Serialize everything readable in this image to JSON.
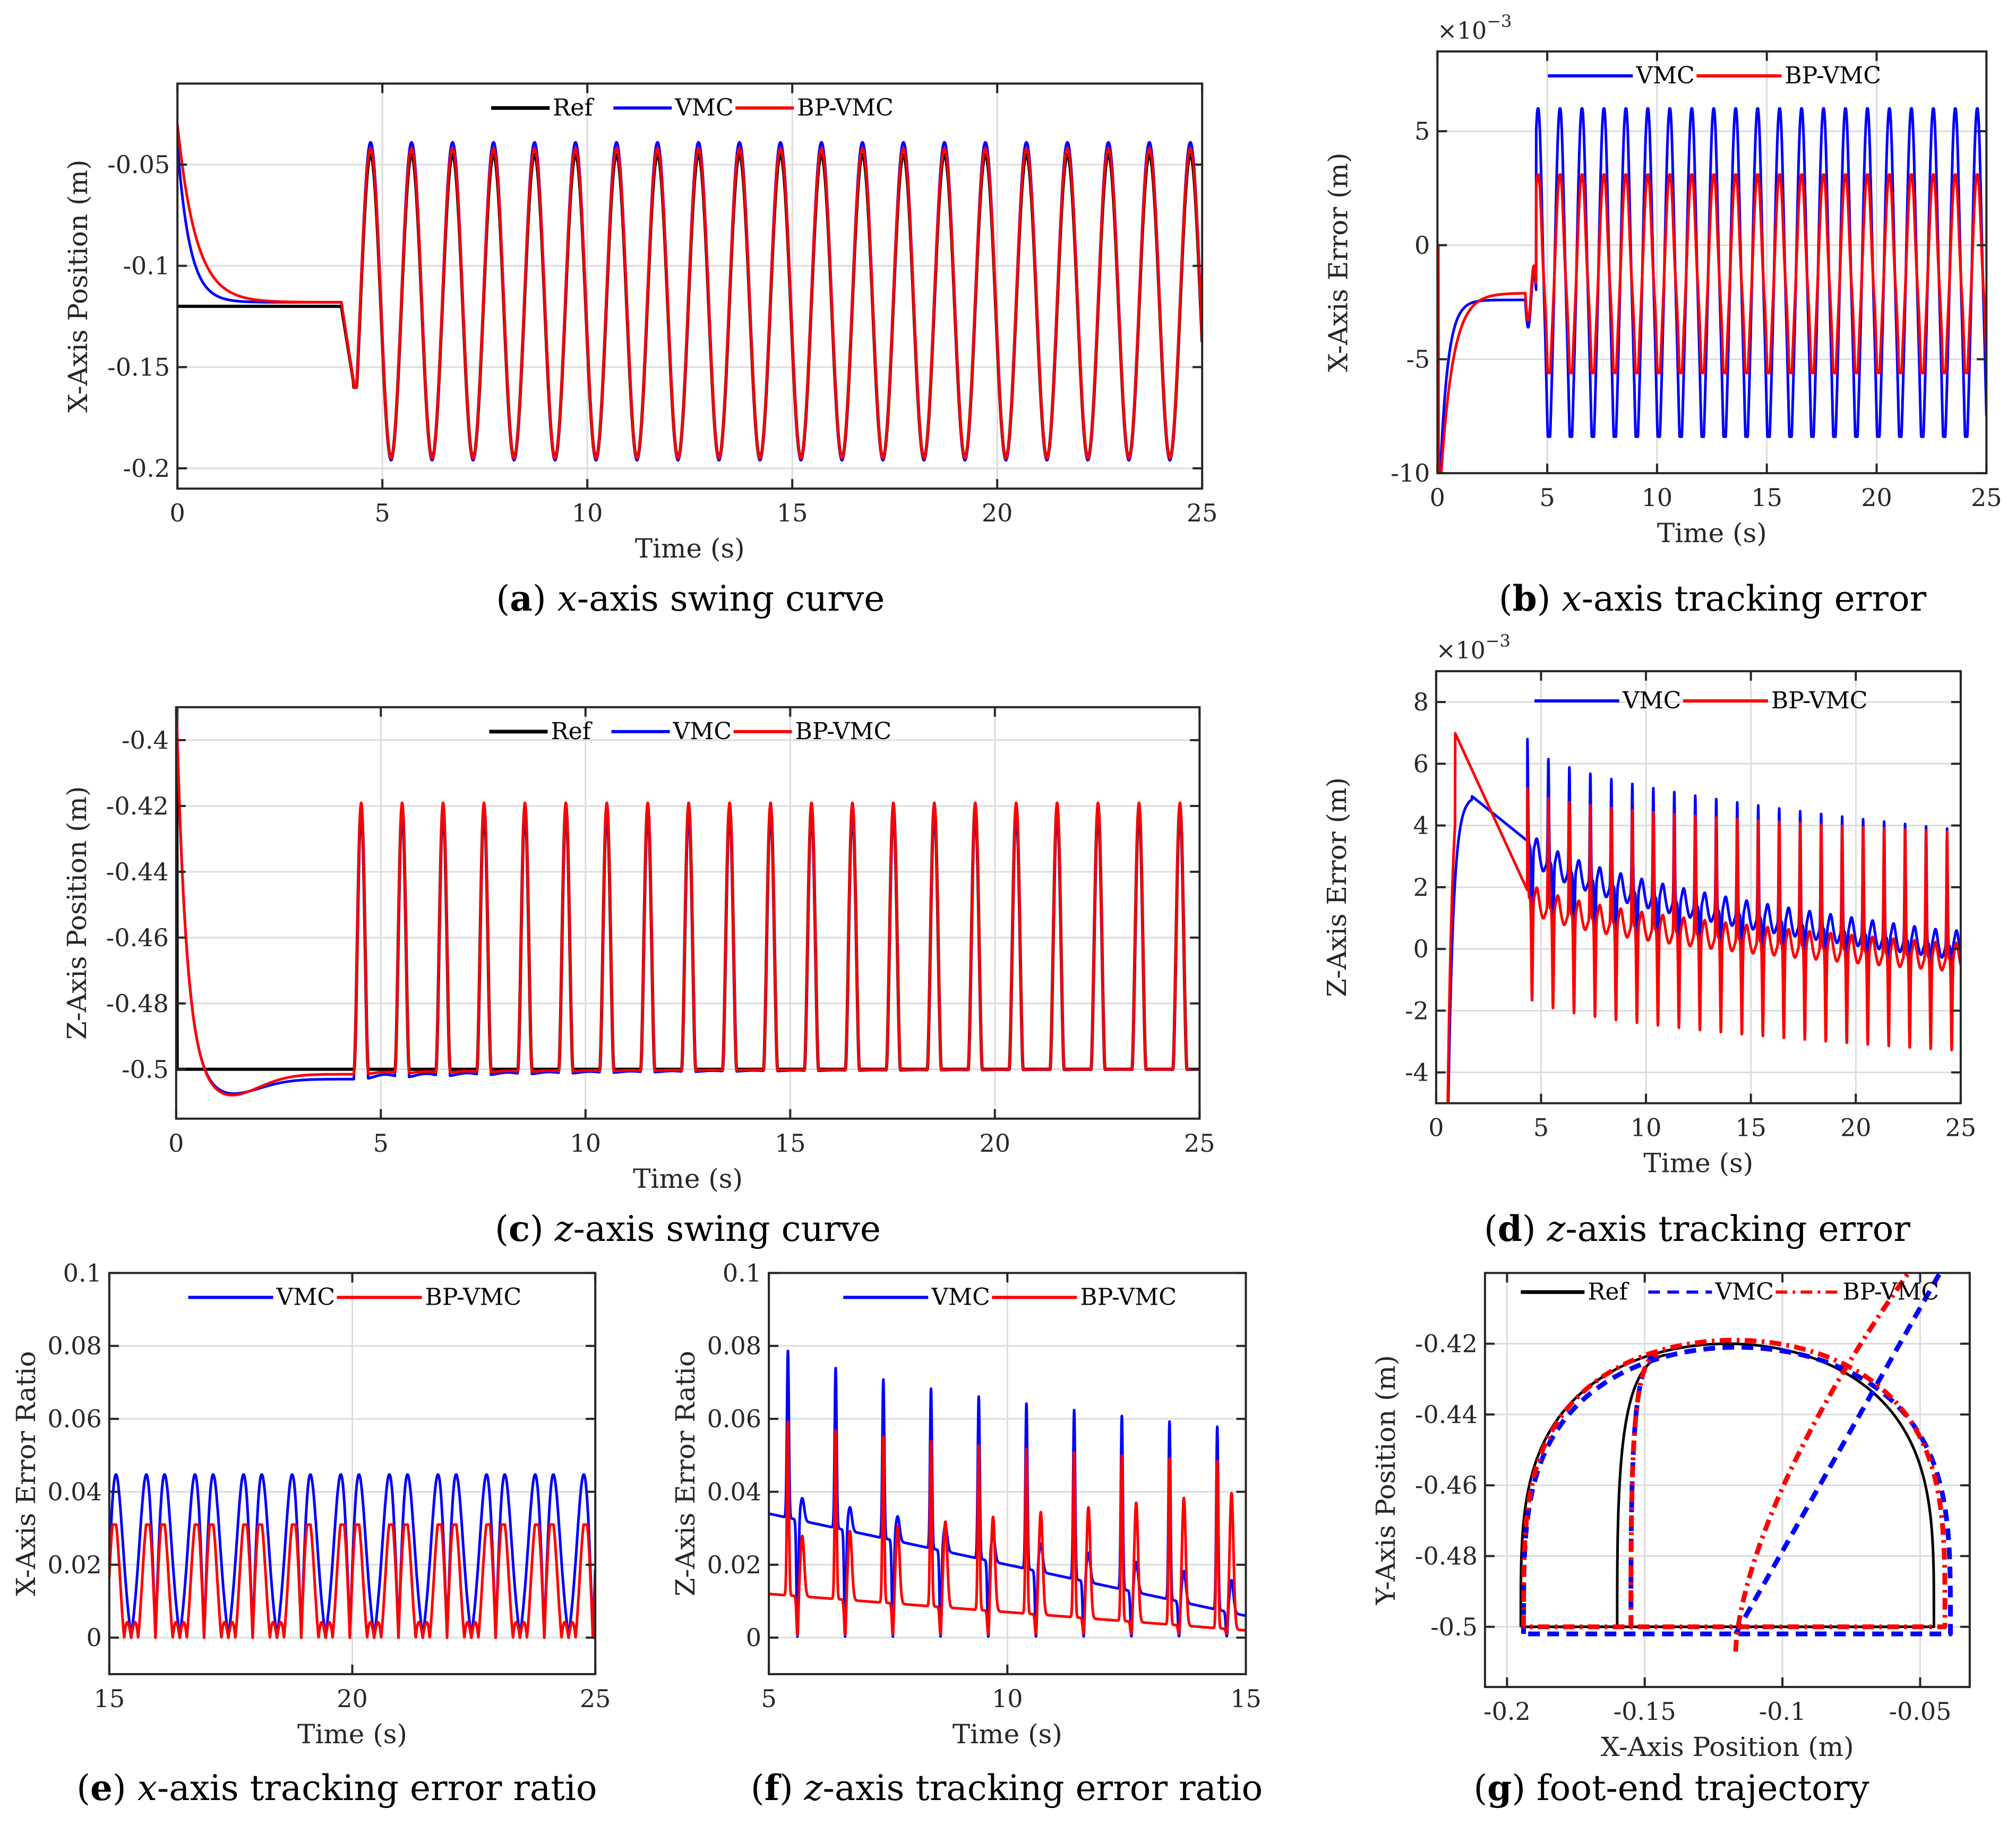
{
  "colors": {
    "ref": "#000000",
    "vmc": "#0000ff",
    "bp": "#ff0000",
    "grid": "#dcdcdc",
    "axis": "#262626"
  },
  "chart_data": [
    {
      "id": "a",
      "type": "line",
      "caption": {
        "letter": "a",
        "var": "x",
        "rest": "-axis swing curve"
      },
      "xlabel": "Time (s)",
      "ylabel": "X-Axis Position (m)",
      "xlim": [
        0,
        25
      ],
      "ylim": [
        -0.21,
        -0.01
      ],
      "xticks": [
        0,
        5,
        10,
        15,
        20,
        25
      ],
      "xticklabels": [
        "0",
        "5",
        "10",
        "15",
        "20",
        "25"
      ],
      "yticks": [
        -0.2,
        -0.15,
        -0.1,
        -0.05
      ],
      "yticklabels": [
        "-0.2",
        "-0.15",
        "-0.1",
        "-0.05"
      ],
      "grid": true,
      "legend": {
        "position": "top-center",
        "entries": [
          "Ref",
          "VMC",
          "BP-VMC"
        ]
      },
      "series": [
        {
          "name": "Ref",
          "key": "ref",
          "width": 5,
          "model": "xswing",
          "init": -0.12,
          "settle": -0.12,
          "tau": 0.01,
          "peak": -0.045,
          "trough": -0.195
        },
        {
          "name": "VMC",
          "key": "vmc",
          "width": 4,
          "model": "xswing",
          "init": -0.04,
          "settle": -0.118,
          "tau": 0.3,
          "peak": -0.039,
          "trough": -0.196
        },
        {
          "name": "BP-VMC",
          "key": "bp",
          "width": 4,
          "model": "xswing",
          "init": -0.03,
          "settle": -0.118,
          "tau": 0.45,
          "peak": -0.042,
          "trough": -0.195
        }
      ]
    },
    {
      "id": "b",
      "type": "line",
      "caption": {
        "letter": "b",
        "var": "x",
        "rest": "-axis tracking error"
      },
      "xlabel": "Time (s)",
      "ylabel": "X-Axis Error (m)",
      "exponent": "×10",
      "exponent_power": "−3",
      "xlim": [
        0,
        25
      ],
      "ylim": [
        -10,
        8.5
      ],
      "xticks": [
        0,
        5,
        10,
        15,
        20,
        25
      ],
      "xticklabels": [
        "0",
        "5",
        "10",
        "15",
        "20",
        "25"
      ],
      "yticks": [
        -10,
        -5,
        0,
        5
      ],
      "yticklabels": [
        "-10",
        "-5",
        "0",
        "5"
      ],
      "grid": true,
      "legend": {
        "position": "top-center",
        "entries": [
          "VMC",
          "BP-VMC"
        ]
      },
      "series": [
        {
          "name": "VMC",
          "key": "vmc",
          "width": 4,
          "model": "xerr",
          "settle": -2.4,
          "tau": 0.35,
          "max": 6.0,
          "min": -8.4
        },
        {
          "name": "BP-VMC",
          "key": "bp",
          "width": 4,
          "model": "xerr",
          "settle": -2.1,
          "tau": 0.55,
          "max": 3.1,
          "min": -5.6
        }
      ]
    },
    {
      "id": "c",
      "type": "line",
      "caption": {
        "letter": "c",
        "var": "z",
        "rest": "-axis swing curve"
      },
      "xlabel": "Time (s)",
      "ylabel": "Z-Axis Position (m)",
      "xlim": [
        0,
        25
      ],
      "ylim": [
        -0.515,
        -0.39
      ],
      "xticks": [
        0,
        5,
        10,
        15,
        20,
        25
      ],
      "xticklabels": [
        "0",
        "5",
        "10",
        "15",
        "20",
        "25"
      ],
      "yticks": [
        -0.5,
        -0.48,
        -0.46,
        -0.44,
        -0.42,
        -0.4
      ],
      "yticklabels": [
        "-0.5",
        "-0.48",
        "-0.46",
        "-0.44",
        "-0.42",
        "-0.4"
      ],
      "grid": true,
      "legend": {
        "position": "top-center",
        "entries": [
          "Ref",
          "VMC",
          "BP-VMC"
        ]
      },
      "series": [
        {
          "name": "Ref",
          "key": "ref",
          "width": 5,
          "model": "zswing",
          "base": -0.5,
          "dip": 0.0,
          "offset": 0.0,
          "peak": -0.42
        },
        {
          "name": "VMC",
          "key": "vmc",
          "width": 4,
          "model": "zswing",
          "base": -0.5,
          "dip": -0.005,
          "offset": -0.003,
          "peak": -0.421
        },
        {
          "name": "BP-VMC",
          "key": "bp",
          "width": 4,
          "model": "zswing",
          "base": -0.5,
          "dip": -0.007,
          "offset": -0.0015,
          "peak": -0.419
        }
      ]
    },
    {
      "id": "d",
      "type": "line",
      "caption": {
        "letter": "d",
        "var": "z",
        "rest": "-axis tracking error"
      },
      "xlabel": "Time (s)",
      "ylabel": "Z-Axis Error (m)",
      "exponent": "×10",
      "exponent_power": "−3",
      "xlim": [
        0,
        25
      ],
      "ylim": [
        -5,
        9
      ],
      "xticks": [
        0,
        5,
        10,
        15,
        20,
        25
      ],
      "xticklabels": [
        "0",
        "5",
        "10",
        "15",
        "20",
        "25"
      ],
      "yticks": [
        -4,
        -2,
        0,
        2,
        4,
        6,
        8
      ],
      "yticklabels": [
        "-4",
        "-2",
        "0",
        "2",
        "4",
        "6",
        "8"
      ],
      "grid": true,
      "legend": {
        "position": "top-center",
        "entries": [
          "VMC",
          "BP-VMC"
        ]
      },
      "series": [
        {
          "name": "VMC",
          "key": "vmc",
          "width": 4,
          "model": "zerr",
          "hump": 4.95,
          "humpT": 1.7,
          "pre": 3.5,
          "peaks": [
            6.8,
            3.9
          ],
          "lows": [
            0.4,
            -1.8
          ],
          "base": [
            3.6,
            0.1
          ]
        },
        {
          "name": "BP-VMC",
          "key": "bp",
          "width": 4,
          "model": "zerr",
          "hump": 7.0,
          "humpT": 0.9,
          "pre": 1.9,
          "peaks": [
            5.2,
            3.8
          ],
          "lows": [
            -1.5,
            -3.3
          ],
          "base": [
            1.8,
            -0.3
          ]
        }
      ]
    },
    {
      "id": "e",
      "type": "line",
      "caption": {
        "letter": "e",
        "var": "x",
        "rest": "-axis tracking error ratio"
      },
      "xlabel": "Time (s)",
      "ylabel": "X-Axis Error Ratio",
      "xlim": [
        15,
        25
      ],
      "ylim": [
        -0.01,
        0.1
      ],
      "xticks": [
        15,
        20,
        25
      ],
      "xticklabels": [
        "15",
        "20",
        "25"
      ],
      "yticks": [
        0,
        0.02,
        0.04,
        0.06,
        0.08,
        0.1
      ],
      "yticklabels": [
        "0",
        "0.02",
        "0.04",
        "0.06",
        "0.08",
        "0.1"
      ],
      "grid": true,
      "legend": {
        "position": "top-center",
        "entries": [
          "VMC",
          "BP-VMC"
        ]
      },
      "series": [
        {
          "name": "VMC",
          "key": "vmc",
          "width": 4,
          "model": "xratio",
          "hi": 0.056,
          "mid": 0.051,
          "low": 0.041,
          "p2": 0.04
        },
        {
          "name": "BP-VMC",
          "key": "bp",
          "width": 4,
          "model": "xratio",
          "hi": 0.031,
          "mid": 0.038,
          "low": 0.027,
          "p2": 0.021
        }
      ]
    },
    {
      "id": "f",
      "type": "line",
      "caption": {
        "letter": "f",
        "var": "z",
        "rest": "-axis tracking error ratio"
      },
      "xlabel": "Time (s)",
      "ylabel": "Z-Axis Error Ratio",
      "xlim": [
        5,
        15
      ],
      "ylim": [
        -0.01,
        0.1
      ],
      "xticks": [
        5,
        10,
        15
      ],
      "xticklabels": [
        "5",
        "10",
        "15"
      ],
      "yticks": [
        0,
        0.02,
        0.04,
        0.06,
        0.08,
        0.1
      ],
      "yticklabels": [
        "0",
        "0.02",
        "0.04",
        "0.06",
        "0.08",
        "0.1"
      ],
      "grid": true,
      "legend": {
        "position": "top-center",
        "entries": [
          "VMC",
          "BP-VMC"
        ]
      },
      "series": [
        {
          "name": "VMC",
          "key": "vmc",
          "width": 4,
          "model": "zratio",
          "peaks": [
            0.084,
            0.057
          ],
          "bumps": [
            0.04,
            0.015
          ],
          "floor": [
            0.034,
            0.006
          ]
        },
        {
          "name": "BP-VMC",
          "key": "bp",
          "width": 4,
          "model": "zratio",
          "peaks": [
            0.062,
            0.048
          ],
          "bumps": [
            0.027,
            0.04
          ],
          "floor": [
            0.012,
            0.002
          ]
        }
      ]
    },
    {
      "id": "g",
      "type": "line",
      "caption": {
        "letter": "g",
        "var": "",
        "rest": "foot-end trajectory"
      },
      "xlabel": "X-Axis Position (m)",
      "ylabel": "Y-Axis Position (m)",
      "xlim": [
        -0.208,
        -0.032
      ],
      "ylim": [
        -0.517,
        -0.4
      ],
      "xticks": [
        -0.2,
        -0.15,
        -0.1,
        -0.05
      ],
      "xticklabels": [
        "-0.2",
        "-0.15",
        "-0.1",
        "-0.05"
      ],
      "yticks": [
        -0.5,
        -0.48,
        -0.46,
        -0.44,
        -0.42
      ],
      "yticklabels": [
        "-0.5",
        "-0.48",
        "-0.46",
        "-0.44",
        "-0.42"
      ],
      "grid": true,
      "legend": {
        "position": "top",
        "entries": [
          "Ref",
          "VMC",
          "BP-VMC"
        ]
      },
      "series": [
        {
          "name": "Ref",
          "key": "ref",
          "width": 4,
          "dash": "",
          "model": "traj"
        },
        {
          "name": "VMC",
          "key": "vmc",
          "width": 5,
          "dash": "22,14",
          "model": "traj"
        },
        {
          "name": "BP-VMC",
          "key": "bp",
          "width": 5,
          "dash": "22,10,5,10",
          "model": "traj"
        }
      ]
    }
  ]
}
